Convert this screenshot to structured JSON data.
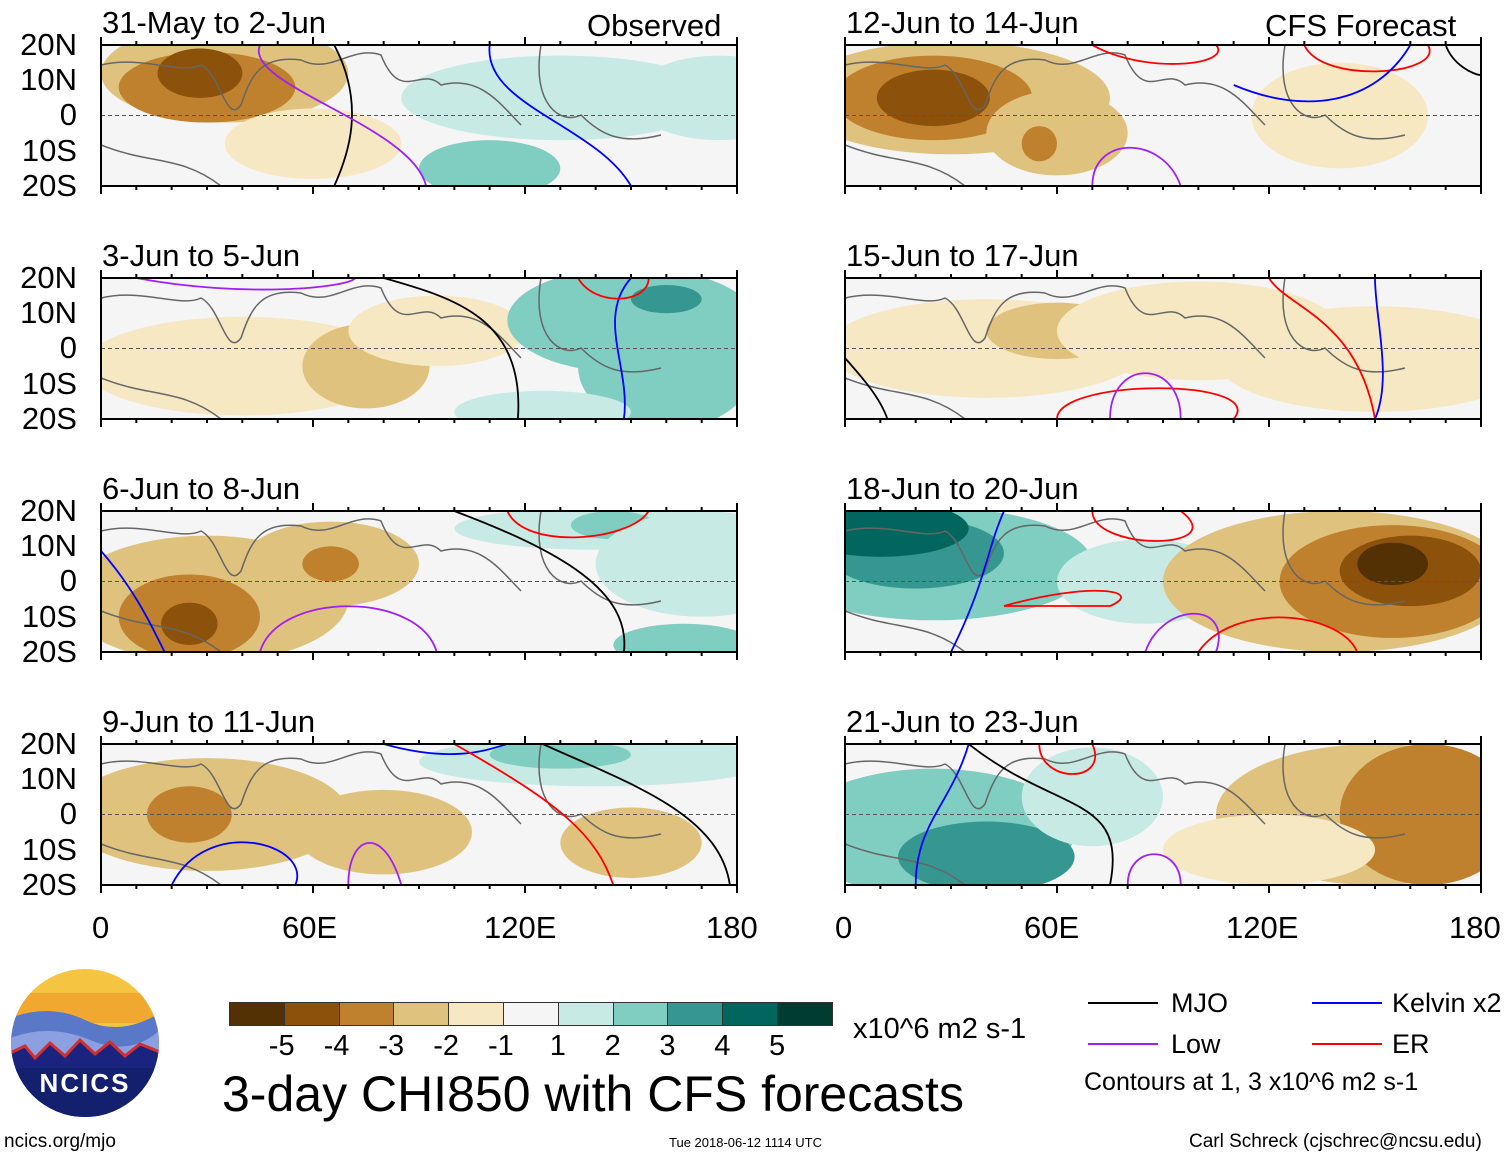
{
  "chart_data": {
    "type": "heatmap",
    "title": "3-day CHI850 with CFS forecasts",
    "variable": "850-hPa velocity potential anomaly (CHI850)",
    "units": "x10^6 m2 s-1",
    "x_ticks": [
      "0",
      "60E",
      "120E",
      "180"
    ],
    "y_ticks": [
      "20N",
      "10N",
      "0",
      "10S",
      "20S"
    ],
    "xlim": [
      0,
      180
    ],
    "ylim": [
      -20,
      20
    ],
    "column_labels": {
      "left": "Observed",
      "right": "CFS Forecast"
    },
    "panels": [
      {
        "period": "31-May to 2-Jun",
        "source": "Observed"
      },
      {
        "period": "3-Jun to 5-Jun",
        "source": "Observed"
      },
      {
        "period": "6-Jun to 8-Jun",
        "source": "Observed"
      },
      {
        "period": "9-Jun to 11-Jun",
        "source": "Observed"
      },
      {
        "period": "12-Jun to 14-Jun",
        "source": "CFS Forecast"
      },
      {
        "period": "15-Jun to 17-Jun",
        "source": "CFS Forecast"
      },
      {
        "period": "18-Jun to 20-Jun",
        "source": "CFS Forecast"
      },
      {
        "period": "21-Jun to 23-Jun",
        "source": "CFS Forecast"
      }
    ],
    "colorbar": {
      "labels": [
        "-5",
        "-4",
        "-3",
        "-2",
        "-1",
        "1",
        "2",
        "3",
        "4",
        "5"
      ],
      "colors": [
        "#543005",
        "#8c510a",
        "#bf812d",
        "#dfc27d",
        "#f6e8c3",
        "#f5f5f5",
        "#c7eae5",
        "#80cdc1",
        "#35978f",
        "#01665e",
        "#003c30"
      ],
      "units": "x10^6 m2 s-1"
    },
    "legend": {
      "entries": [
        {
          "label": "MJO",
          "color": "#000000"
        },
        {
          "label": "Kelvin x2",
          "color": "#0000ff"
        },
        {
          "label": "Low",
          "color": "#a020f0"
        },
        {
          "label": "ER",
          "color": "#ff0000"
        }
      ],
      "note": "Contours at 1, 3 x10^6 m2 s-1"
    }
  },
  "footer": {
    "logo_text": "NCICS",
    "url": "ncics.org/mjo",
    "timestamp": "Tue 2018-06-12 1114 UTC",
    "author": "Carl Schreck (cjschrec@ncsu.edu)"
  }
}
